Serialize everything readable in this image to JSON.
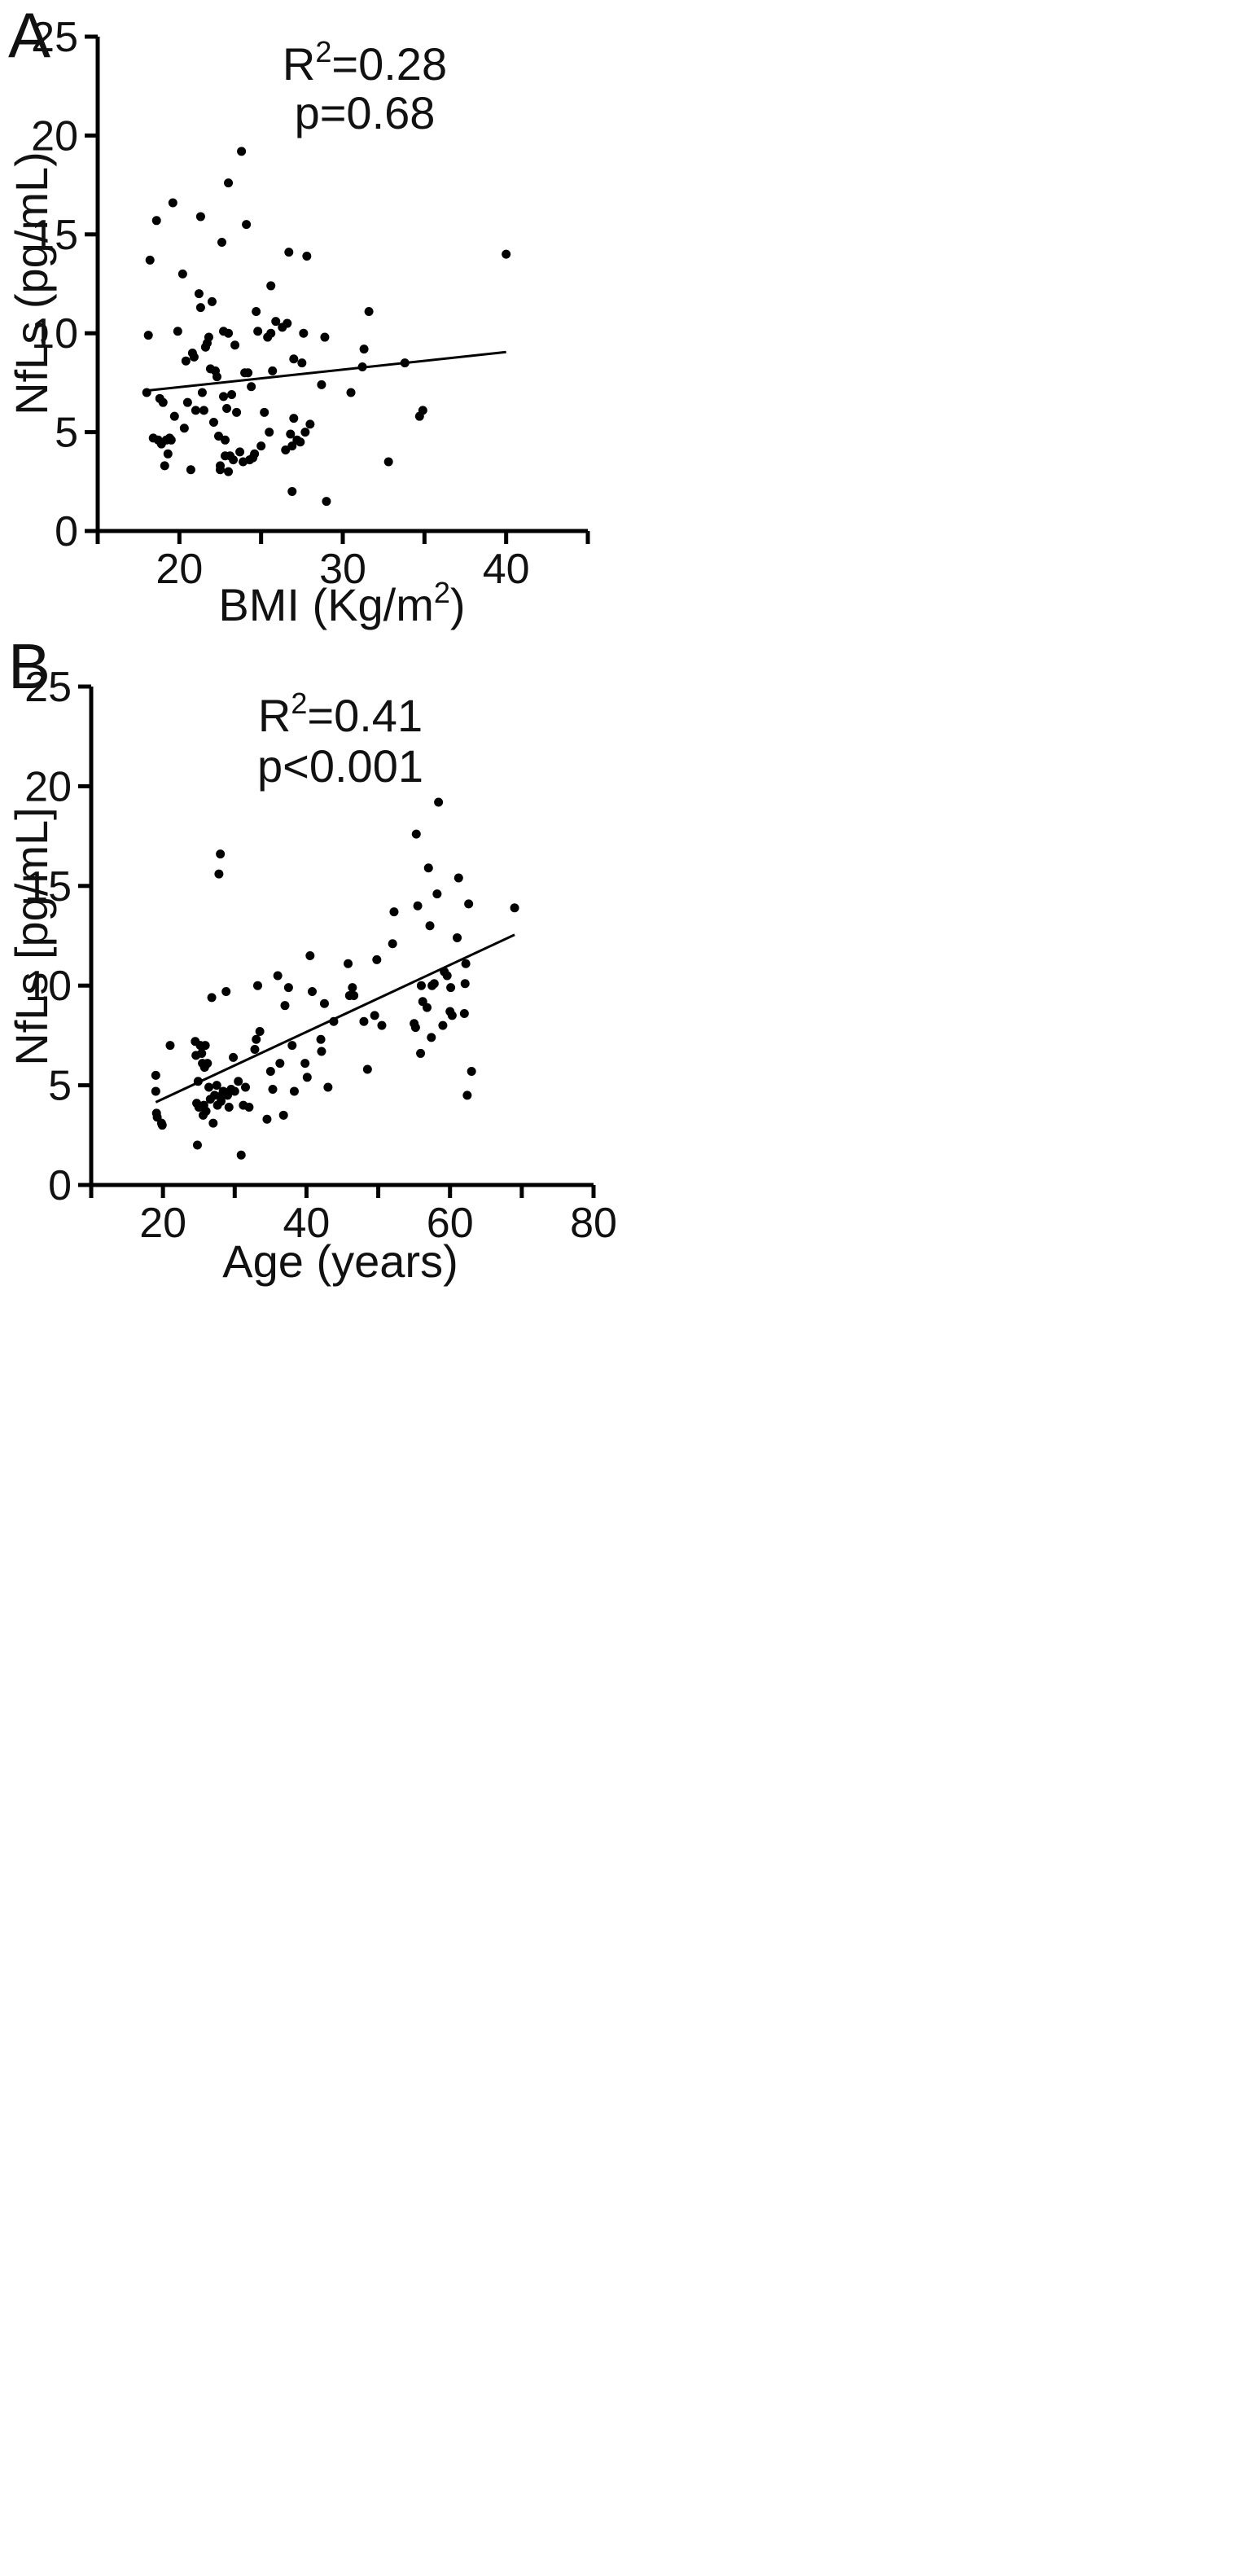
{
  "chart_data": [
    {
      "type": "scatter",
      "panel": "A",
      "xlabel": "BMI (Kg/m",
      "xlabel_sup": "2",
      "xlabel_after": ")",
      "ylabel": "NfLs (pg/mL)",
      "xlim": [
        15,
        45
      ],
      "ylim": [
        0,
        25
      ],
      "xticks": [
        "20",
        "30",
        "40"
      ],
      "yticks": [
        "0",
        "5",
        "10",
        "15",
        "20",
        "25"
      ],
      "annotation": {
        "r_label": "R",
        "r_sup": "2",
        "r_value": "=0.28",
        "p": "p=0.68"
      },
      "fit_line": {
        "x": [
          18,
          40
        ],
        "y": [
          7.1,
          9.05
        ]
      },
      "points": [
        [
          18.0,
          7.0
        ],
        [
          18.1,
          9.9
        ],
        [
          18.2,
          13.7
        ],
        [
          18.4,
          4.7
        ],
        [
          18.6,
          15.7
        ],
        [
          18.7,
          4.6
        ],
        [
          18.8,
          6.7
        ],
        [
          18.9,
          4.4
        ],
        [
          19.0,
          6.5
        ],
        [
          19.1,
          3.3
        ],
        [
          19.2,
          4.6
        ],
        [
          19.3,
          3.9
        ],
        [
          19.4,
          4.7
        ],
        [
          19.5,
          4.6
        ],
        [
          19.6,
          16.6
        ],
        [
          19.7,
          5.8
        ],
        [
          19.9,
          10.1
        ],
        [
          20.2,
          13.0
        ],
        [
          20.3,
          5.2
        ],
        [
          20.4,
          8.6
        ],
        [
          20.5,
          6.5
        ],
        [
          20.7,
          3.1
        ],
        [
          20.8,
          9.0
        ],
        [
          20.9,
          8.8
        ],
        [
          21.0,
          6.1
        ],
        [
          21.2,
          12.0
        ],
        [
          21.3,
          15.9
        ],
        [
          21.3,
          11.3
        ],
        [
          21.4,
          7.0
        ],
        [
          21.5,
          6.1
        ],
        [
          21.6,
          9.3
        ],
        [
          21.7,
          9.5
        ],
        [
          21.8,
          9.8
        ],
        [
          21.9,
          8.2
        ],
        [
          22.0,
          11.6
        ],
        [
          22.1,
          5.5
        ],
        [
          22.2,
          8.1
        ],
        [
          22.3,
          7.8
        ],
        [
          22.4,
          4.8
        ],
        [
          22.5,
          3.3
        ],
        [
          22.5,
          3.1
        ],
        [
          22.6,
          14.6
        ],
        [
          22.7,
          10.1
        ],
        [
          22.7,
          6.8
        ],
        [
          22.8,
          4.6
        ],
        [
          22.8,
          3.8
        ],
        [
          22.9,
          6.2
        ],
        [
          23.0,
          17.6
        ],
        [
          23.0,
          10.0
        ],
        [
          23.0,
          3.0
        ],
        [
          23.1,
          3.8
        ],
        [
          23.2,
          6.9
        ],
        [
          23.3,
          3.6
        ],
        [
          23.4,
          9.4
        ],
        [
          23.5,
          6.0
        ],
        [
          23.7,
          4.0
        ],
        [
          23.8,
          19.2
        ],
        [
          23.9,
          3.5
        ],
        [
          24.0,
          8.0
        ],
        [
          24.1,
          15.5
        ],
        [
          24.2,
          8.0
        ],
        [
          24.3,
          3.6
        ],
        [
          24.4,
          7.3
        ],
        [
          24.5,
          3.7
        ],
        [
          24.6,
          3.9
        ],
        [
          24.7,
          11.1
        ],
        [
          24.8,
          10.1
        ],
        [
          25.0,
          4.3
        ],
        [
          25.2,
          6.0
        ],
        [
          25.4,
          9.8
        ],
        [
          25.5,
          5.0
        ],
        [
          25.6,
          10.0
        ],
        [
          25.6,
          12.4
        ],
        [
          25.7,
          8.1
        ],
        [
          25.9,
          10.6
        ],
        [
          26.3,
          10.3
        ],
        [
          26.5,
          4.1
        ],
        [
          26.6,
          10.5
        ],
        [
          26.7,
          14.1
        ],
        [
          26.8,
          4.9
        ],
        [
          26.9,
          4.3
        ],
        [
          26.9,
          2.0
        ],
        [
          27.0,
          5.7
        ],
        [
          27.0,
          8.7
        ],
        [
          27.2,
          4.6
        ],
        [
          27.4,
          4.5
        ],
        [
          27.5,
          8.5
        ],
        [
          27.6,
          10.0
        ],
        [
          27.7,
          5.0
        ],
        [
          27.8,
          13.9
        ],
        [
          28.0,
          5.4
        ],
        [
          28.7,
          7.4
        ],
        [
          28.9,
          9.8
        ],
        [
          29.0,
          1.5
        ],
        [
          30.5,
          7.0
        ],
        [
          31.2,
          8.3
        ],
        [
          31.3,
          9.2
        ],
        [
          31.6,
          11.1
        ],
        [
          32.8,
          3.5
        ],
        [
          33.8,
          8.5
        ],
        [
          34.7,
          5.8
        ],
        [
          34.9,
          6.1
        ],
        [
          40.0,
          14.0
        ]
      ]
    },
    {
      "type": "scatter",
      "panel": "B",
      "xlabel": "Age (years)",
      "ylabel": "NfLs [pg/mL]",
      "xlim": [
        10,
        80
      ],
      "ylim": [
        0,
        25
      ],
      "xticks": [
        "20",
        "40",
        "60",
        "80"
      ],
      "yticks": [
        "0",
        "5",
        "10",
        "15",
        "20",
        "25"
      ],
      "annotation": {
        "r_label": "R",
        "r_sup": "2",
        "r_value": "=0.41",
        "p": "p<0.001"
      },
      "fit_line": {
        "x": [
          19,
          69
        ],
        "y": [
          4.15,
          12.55
        ]
      },
      "points": [
        [
          19.0,
          5.5
        ],
        [
          19.0,
          4.7
        ],
        [
          19.1,
          3.6
        ],
        [
          19.2,
          3.4
        ],
        [
          19.8,
          3.1
        ],
        [
          19.9,
          3.0
        ],
        [
          21.0,
          7.0
        ],
        [
          24.5,
          7.2
        ],
        [
          24.6,
          6.5
        ],
        [
          24.7,
          4.1
        ],
        [
          24.8,
          2.0
        ],
        [
          24.9,
          5.2
        ],
        [
          25.0,
          3.9
        ],
        [
          25.2,
          7.0
        ],
        [
          25.4,
          6.6
        ],
        [
          25.5,
          6.1
        ],
        [
          25.6,
          3.5
        ],
        [
          25.7,
          4.0
        ],
        [
          25.8,
          5.9
        ],
        [
          25.9,
          7.0
        ],
        [
          26.0,
          3.7
        ],
        [
          26.2,
          6.1
        ],
        [
          26.4,
          4.9
        ],
        [
          26.6,
          4.3
        ],
        [
          26.8,
          9.4
        ],
        [
          27.0,
          3.1
        ],
        [
          27.2,
          4.5
        ],
        [
          27.5,
          5.0
        ],
        [
          27.6,
          4.0
        ],
        [
          27.8,
          15.6
        ],
        [
          28.0,
          16.6
        ],
        [
          28.1,
          4.2
        ],
        [
          28.2,
          4.5
        ],
        [
          28.4,
          4.7
        ],
        [
          28.6,
          4.6
        ],
        [
          28.8,
          9.7
        ],
        [
          29.0,
          4.5
        ],
        [
          29.2,
          3.9
        ],
        [
          29.5,
          4.8
        ],
        [
          29.8,
          6.4
        ],
        [
          30.0,
          4.7
        ],
        [
          30.5,
          5.2
        ],
        [
          30.9,
          1.5
        ],
        [
          31.2,
          4.0
        ],
        [
          31.5,
          4.9
        ],
        [
          32.0,
          3.9
        ],
        [
          32.8,
          6.8
        ],
        [
          33.0,
          7.3
        ],
        [
          33.2,
          10.0
        ],
        [
          33.5,
          7.7
        ],
        [
          34.5,
          3.3
        ],
        [
          35.0,
          5.7
        ],
        [
          35.3,
          4.8
        ],
        [
          36.0,
          10.5
        ],
        [
          36.3,
          6.1
        ],
        [
          36.8,
          3.5
        ],
        [
          37.0,
          9.0
        ],
        [
          37.5,
          9.9
        ],
        [
          38.0,
          7.0
        ],
        [
          38.3,
          4.7
        ],
        [
          39.8,
          6.1
        ],
        [
          40.1,
          5.4
        ],
        [
          40.5,
          11.5
        ],
        [
          40.8,
          9.7
        ],
        [
          42.0,
          7.3
        ],
        [
          42.1,
          6.7
        ],
        [
          42.5,
          9.1
        ],
        [
          43.0,
          4.9
        ],
        [
          43.8,
          8.2
        ],
        [
          45.8,
          11.1
        ],
        [
          46.0,
          9.5
        ],
        [
          46.4,
          9.9
        ],
        [
          46.6,
          9.5
        ],
        [
          48.0,
          8.2
        ],
        [
          48.5,
          5.8
        ],
        [
          49.5,
          8.5
        ],
        [
          49.8,
          11.3
        ],
        [
          50.5,
          8.0
        ],
        [
          52.0,
          12.1
        ],
        [
          52.2,
          13.7
        ],
        [
          55.0,
          8.1
        ],
        [
          55.2,
          7.9
        ],
        [
          55.3,
          17.6
        ],
        [
          55.5,
          14.0
        ],
        [
          55.9,
          6.6
        ],
        [
          56.0,
          10.0
        ],
        [
          56.2,
          9.2
        ],
        [
          56.8,
          8.9
        ],
        [
          57.0,
          15.9
        ],
        [
          57.2,
          13.0
        ],
        [
          57.4,
          7.4
        ],
        [
          57.5,
          10.0
        ],
        [
          57.8,
          10.1
        ],
        [
          58.2,
          14.6
        ],
        [
          58.4,
          19.2
        ],
        [
          59.0,
          8.0
        ],
        [
          59.2,
          10.7
        ],
        [
          59.6,
          10.5
        ],
        [
          60.0,
          8.7
        ],
        [
          60.1,
          9.9
        ],
        [
          60.3,
          8.5
        ],
        [
          61.0,
          12.4
        ],
        [
          61.2,
          15.4
        ],
        [
          62.0,
          8.6
        ],
        [
          62.1,
          10.1
        ],
        [
          62.2,
          11.1
        ],
        [
          62.4,
          4.5
        ],
        [
          62.6,
          14.1
        ],
        [
          63.0,
          5.7
        ],
        [
          69.0,
          13.9
        ]
      ]
    }
  ]
}
